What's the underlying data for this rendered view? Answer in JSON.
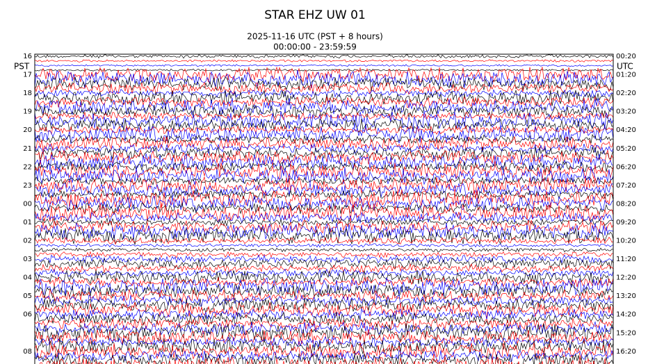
{
  "header": {
    "title": "STAR EHZ UW 01",
    "subtitle": [
      "2025-11-16 UTC (PST + 8 hours)",
      "00:00:00 - 23:59:59"
    ]
  },
  "axes": {
    "left_label": "PST",
    "right_label": "UTC",
    "left_ticks": [
      "16",
      "17",
      "18",
      "19",
      "20",
      "21",
      "22",
      "23",
      "00",
      "01",
      "02",
      "03",
      "04",
      "05",
      "06",
      null,
      "08"
    ],
    "right_ticks": [
      "00:20",
      "01:20",
      "02:20",
      "03:20",
      "04:20",
      "05:20",
      "06:20",
      "07:20",
      "08:20",
      "09:20",
      "10:20",
      "11:20",
      "12:20",
      "13:20",
      "14:20",
      "15:20",
      "16:20"
    ]
  }
}
